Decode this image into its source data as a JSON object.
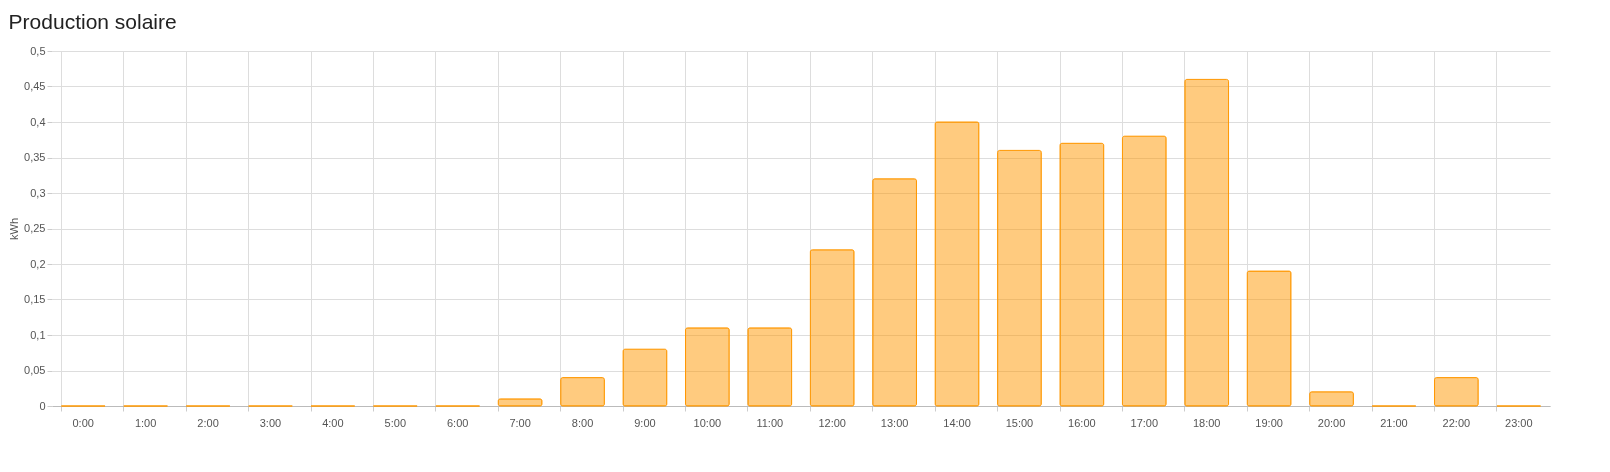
{
  "chart_data": {
    "type": "bar",
    "title": "Production solaire",
    "ylabel": "kWh",
    "categories": [
      "0:00",
      "1:00",
      "2:00",
      "3:00",
      "4:00",
      "5:00",
      "6:00",
      "7:00",
      "8:00",
      "9:00",
      "10:00",
      "11:00",
      "12:00",
      "13:00",
      "14:00",
      "15:00",
      "16:00",
      "17:00",
      "18:00",
      "19:00",
      "20:00",
      "21:00",
      "22:00",
      "23:00"
    ],
    "values": [
      0,
      0,
      0,
      0,
      0,
      0,
      0,
      0.01,
      0.04,
      0.08,
      0.11,
      0.11,
      0.22,
      0.32,
      0.4,
      0.36,
      0.37,
      0.38,
      0.46,
      0.19,
      0.02,
      0,
      0.04,
      0
    ],
    "color": "#ff9800",
    "ylim": [
      0,
      0.5
    ],
    "yticks": [
      0,
      {
        "value": 0.05,
        "label": "0,05"
      },
      {
        "value": 0.1,
        "label": "0,1"
      },
      {
        "value": 0.15,
        "label": "0,15"
      },
      {
        "value": 0.2,
        "label": "0,2"
      },
      {
        "value": 0.25,
        "label": "0,25"
      },
      {
        "value": 0.3,
        "label": "0,3"
      },
      {
        "value": 0.35,
        "label": "0,35"
      },
      {
        "value": 0.4,
        "label": "0,4"
      },
      {
        "value": 0.45,
        "label": "0,45"
      },
      {
        "value": 0.5,
        "label": "0,5"
      }
    ],
    "grid": true
  }
}
